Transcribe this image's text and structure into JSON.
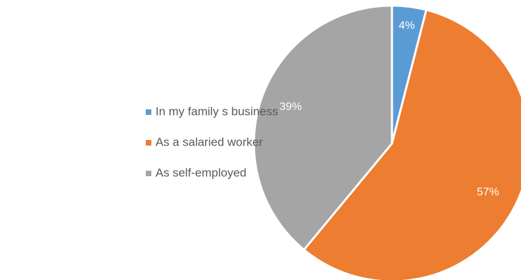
{
  "chart_data": {
    "type": "pie",
    "categories": [
      "In my family s business",
      "As a salaried worker",
      "As self-employed"
    ],
    "values": [
      4,
      57,
      39
    ],
    "value_labels": [
      "4%",
      "57%",
      "39%"
    ],
    "colors": [
      "#5b9bd5",
      "#ed7d31",
      "#a5a5a5"
    ],
    "legend": "left"
  }
}
